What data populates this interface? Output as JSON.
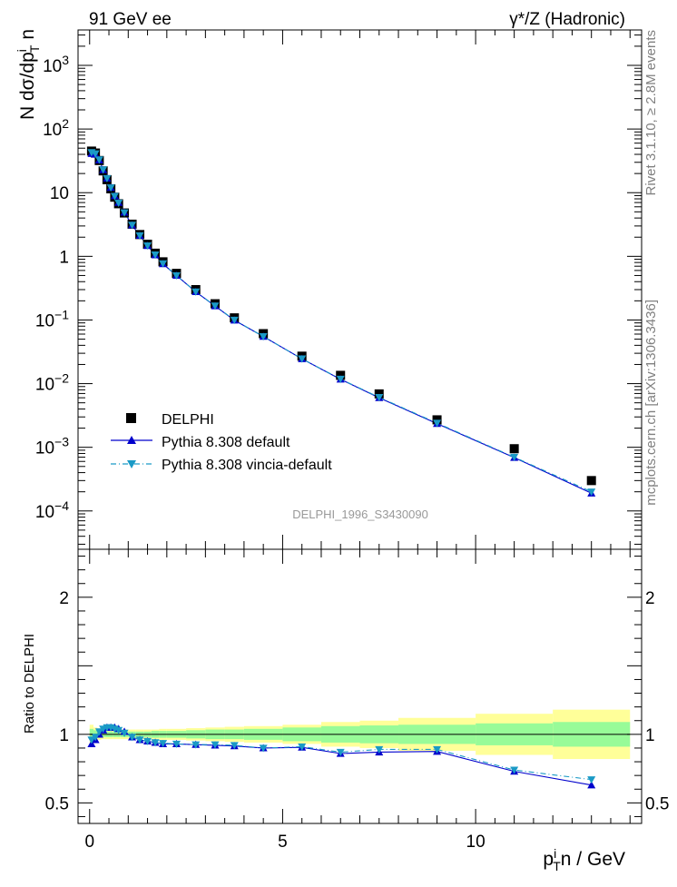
{
  "header": {
    "left": "91 GeV ee",
    "right": "γ*/Z (Hadronic)"
  },
  "side": {
    "rivet": "Rivet 3.1.10, ≥ 2.8M events",
    "mcplots": "mcplots.cern.ch [arXiv:1306.3436]"
  },
  "analysis_id": "DELPHI_1996_S3430090",
  "legend": {
    "data": "DELPHI",
    "mc1": "Pythia 8.308 default",
    "mc2": "Pythia 8.308 vincia-default"
  },
  "colors": {
    "data": "#000000",
    "mc1": "#0000cc",
    "mc2": "#1a9ac6",
    "band_inner": "#98fb98",
    "band_outer": "#ffff99"
  },
  "chart_data": [
    {
      "type": "scatter",
      "name": "main",
      "ylabel": "N dσ/dp_T^i n",
      "yscale": "log",
      "xlim": [
        -0.3,
        14.3
      ],
      "ylim": [
        2.5e-05,
        3600
      ],
      "y_ticks": [
        "10^{-4}",
        "10^{-3}",
        "10^{-2}",
        "10^{-1}",
        "1",
        "10",
        "10^{2}",
        "10^{3}"
      ],
      "x": [
        0.05,
        0.15,
        0.25,
        0.35,
        0.45,
        0.55,
        0.65,
        0.75,
        0.9,
        1.1,
        1.3,
        1.5,
        1.7,
        1.9,
        2.25,
        2.75,
        3.25,
        3.75,
        4.5,
        5.5,
        6.5,
        7.5,
        9.0,
        11.0,
        13.0
      ],
      "series": [
        {
          "name": "DELPHI",
          "values": [
            45.0,
            42.0,
            32.0,
            22.0,
            16.0,
            11.5,
            8.5,
            6.7,
            4.8,
            3.2,
            2.2,
            1.55,
            1.12,
            0.82,
            0.54,
            0.3,
            0.18,
            0.108,
            0.061,
            0.027,
            0.0135,
            0.0069,
            0.0027,
            0.00095,
            0.0003
          ]
        },
        {
          "name": "Pythia 8.308 default",
          "values": [
            41.0,
            40.0,
            32.5,
            22.8,
            16.8,
            12.0,
            8.9,
            7.0,
            4.9,
            3.1,
            2.12,
            1.47,
            1.05,
            0.76,
            0.5,
            0.277,
            0.166,
            0.099,
            0.055,
            0.0245,
            0.0117,
            0.006,
            0.00235,
            0.00069,
            0.00019
          ]
        },
        {
          "name": "Pythia 8.308 vincia-default",
          "values": [
            43.0,
            41.0,
            33.0,
            23.0,
            16.8,
            12.0,
            8.8,
            6.9,
            4.85,
            3.1,
            2.12,
            1.47,
            1.06,
            0.77,
            0.5,
            0.278,
            0.167,
            0.1,
            0.055,
            0.0246,
            0.0118,
            0.0061,
            0.0024,
            0.0007,
            0.0002
          ]
        }
      ]
    },
    {
      "type": "line",
      "name": "ratio",
      "xlabel": "p_T^i n / GeV",
      "ylabel": "Ratio to DELPHI",
      "xlim": [
        -0.3,
        14.3
      ],
      "ylim": [
        0.35,
        2.35
      ],
      "x_ticks": [
        0,
        5,
        10
      ],
      "y_ticks": [
        0.5,
        1,
        2
      ],
      "x": [
        0.05,
        0.15,
        0.25,
        0.35,
        0.45,
        0.55,
        0.65,
        0.75,
        0.9,
        1.1,
        1.3,
        1.5,
        1.7,
        1.9,
        2.25,
        2.75,
        3.25,
        3.75,
        4.5,
        5.5,
        6.5,
        7.5,
        9.0,
        11.0,
        13.0
      ],
      "bands": {
        "bin_edges": [
          0.0,
          0.1,
          0.2,
          0.3,
          0.4,
          0.5,
          0.6,
          0.7,
          0.8,
          1.0,
          1.2,
          1.4,
          1.6,
          1.8,
          2.0,
          2.5,
          3.0,
          3.5,
          4.0,
          5.0,
          6.0,
          7.0,
          8.0,
          10.0,
          12.0,
          14.0
        ],
        "inner": [
          0.04,
          0.03,
          0.025,
          0.02,
          0.02,
          0.02,
          0.02,
          0.02,
          0.02,
          0.02,
          0.02,
          0.02,
          0.025,
          0.025,
          0.025,
          0.03,
          0.035,
          0.035,
          0.04,
          0.05,
          0.06,
          0.065,
          0.07,
          0.08,
          0.09
        ],
        "outer": [
          0.07,
          0.05,
          0.04,
          0.035,
          0.035,
          0.035,
          0.035,
          0.035,
          0.035,
          0.035,
          0.035,
          0.035,
          0.035,
          0.04,
          0.04,
          0.045,
          0.05,
          0.055,
          0.06,
          0.07,
          0.09,
          0.1,
          0.12,
          0.15,
          0.18
        ]
      },
      "series": [
        {
          "name": "Pythia 8.308 default",
          "values": [
            0.93,
            0.96,
            1.0,
            1.03,
            1.05,
            1.05,
            1.05,
            1.04,
            1.02,
            0.98,
            0.96,
            0.95,
            0.94,
            0.93,
            0.93,
            0.925,
            0.92,
            0.915,
            0.9,
            0.905,
            0.86,
            0.87,
            0.875,
            0.73,
            0.63
          ]
        },
        {
          "name": "Pythia 8.308 vincia-default",
          "values": [
            0.96,
            0.98,
            1.02,
            1.04,
            1.05,
            1.05,
            1.04,
            1.03,
            1.01,
            0.98,
            0.96,
            0.95,
            0.94,
            0.935,
            0.93,
            0.925,
            0.925,
            0.92,
            0.9,
            0.91,
            0.87,
            0.89,
            0.89,
            0.74,
            0.67
          ]
        }
      ]
    }
  ]
}
